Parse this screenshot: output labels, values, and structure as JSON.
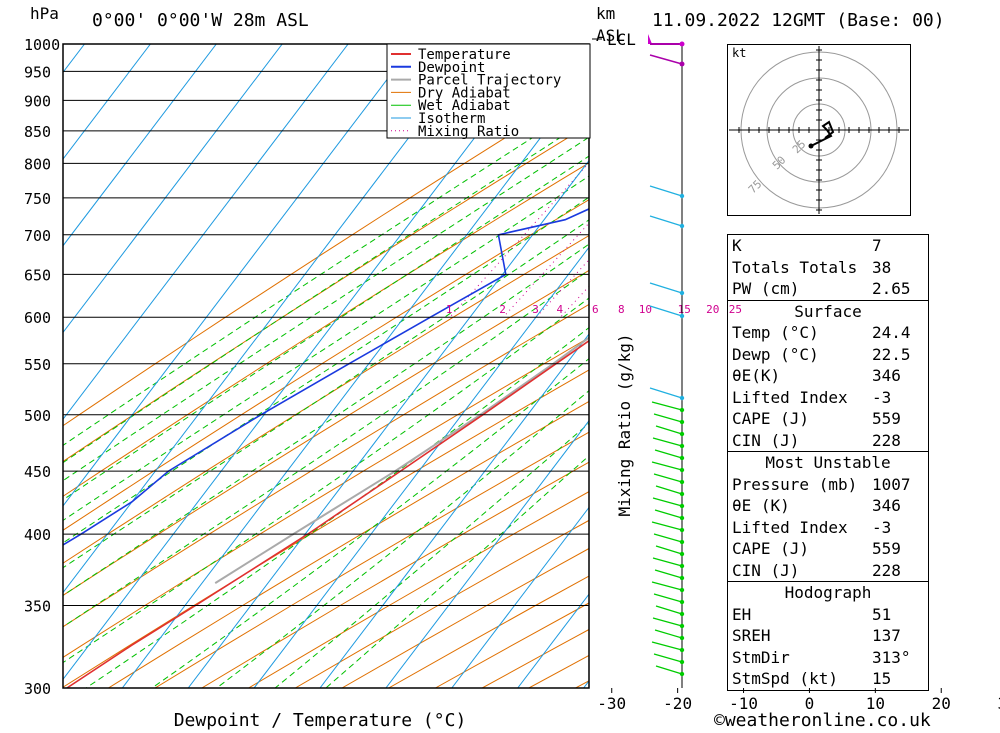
{
  "header": {
    "pressure_unit": "hPa",
    "location": "0°00' 0°00'W 28m ASL",
    "km_unit": "km",
    "asl_label": "ASL",
    "datetime": "11.09.2022 12GMT (Base: 00)"
  },
  "colors": {
    "temperature": "#e03030",
    "dewpoint": "#1a3adf",
    "parcel": "#aaaaaa",
    "dry_adiabat": "#e07000",
    "wet_adiabat": "#00c000",
    "isotherm": "#1e9ae0",
    "mixing_ratio": "#d0008f",
    "wind_barb": "#00cc00"
  },
  "legend": [
    "Temperature",
    "Dewpoint",
    "Parcel Trajectory",
    "Dry Adiabat",
    "Wet Adiabat",
    "Isotherm",
    "Mixing Ratio"
  ],
  "chart_data": {
    "type": "skew-t log-p",
    "xlabel": "Dewpoint / Temperature (°C)",
    "ylabel": "hPa",
    "secondary_label": "Mixing Ratio (g/kg)",
    "x_ticks": [
      "-30",
      "-20",
      "-10",
      "0",
      "10",
      "20",
      "30",
      "40"
    ],
    "y_ticks": [
      "300",
      "350",
      "400",
      "450",
      "500",
      "550",
      "600",
      "650",
      "700",
      "750",
      "800",
      "850",
      "900",
      "950",
      "1000"
    ],
    "mixing_ratio_labels": [
      "1",
      "2",
      "3",
      "4",
      "6",
      "8",
      "10",
      "15",
      "20",
      "25"
    ],
    "lcl_label": "LCL",
    "lcl_pressure": 987,
    "temperature": [
      {
        "p": 1000,
        "t": 24.4
      },
      {
        "p": 990,
        "t": 24.5
      },
      {
        "p": 975,
        "t": 23.8
      },
      {
        "p": 950,
        "t": 22.0
      },
      {
        "p": 925,
        "t": 23.8
      },
      {
        "p": 900,
        "t": 24.8
      },
      {
        "p": 850,
        "t": 21.2
      },
      {
        "p": 800,
        "t": 18.0
      },
      {
        "p": 750,
        "t": 14.4
      },
      {
        "p": 700,
        "t": 10.8
      },
      {
        "p": 650,
        "t": 7.4
      },
      {
        "p": 600,
        "t": 3.2
      },
      {
        "p": 550,
        "t": -1.6
      },
      {
        "p": 500,
        "t": -6.8
      },
      {
        "p": 450,
        "t": -12.8
      },
      {
        "p": 400,
        "t": -19.6
      },
      {
        "p": 350,
        "t": -28.4
      },
      {
        "p": 325,
        "t": -33.5
      },
      {
        "p": 300,
        "t": -38.4
      }
    ],
    "dewpoint": [
      {
        "p": 1000,
        "t": 22.5
      },
      {
        "p": 990,
        "t": 22.4
      },
      {
        "p": 950,
        "t": 19.8
      },
      {
        "p": 925,
        "t": 18.6
      },
      {
        "p": 900,
        "t": -3.8
      },
      {
        "p": 850,
        "t": -6.0
      },
      {
        "p": 800,
        "t": -5.0
      },
      {
        "p": 750,
        "t": -12.0
      },
      {
        "p": 720,
        "t": -16.8
      },
      {
        "p": 700,
        "t": -25.2
      },
      {
        "p": 650,
        "t": -19.5
      },
      {
        "p": 600,
        "t": -26.0
      },
      {
        "p": 550,
        "t": -33.0
      },
      {
        "p": 500,
        "t": -40.5
      },
      {
        "p": 450,
        "t": -48.0
      },
      {
        "p": 425,
        "t": -50.0
      },
      {
        "p": 400,
        "t": -54.0
      },
      {
        "p": 345,
        "t": -65.0
      }
    ],
    "parcel": [
      {
        "p": 1000,
        "t": 24.4
      },
      {
        "p": 987,
        "t": 22.2
      },
      {
        "p": 950,
        "t": 20.8
      },
      {
        "p": 900,
        "t": 18.9
      },
      {
        "p": 850,
        "t": 16.8
      },
      {
        "p": 800,
        "t": 14.5
      },
      {
        "p": 750,
        "t": 12.0
      },
      {
        "p": 700,
        "t": 9.2
      },
      {
        "p": 650,
        "t": 6.0
      },
      {
        "p": 600,
        "t": 2.3
      },
      {
        "p": 550,
        "t": -2.0
      },
      {
        "p": 500,
        "t": -7.2
      },
      {
        "p": 450,
        "t": -13.6
      },
      {
        "p": 400,
        "t": -21.8
      },
      {
        "p": 365,
        "t": -28.0
      }
    ]
  },
  "stats": {
    "general": [
      {
        "k": "K",
        "v": "7"
      },
      {
        "k": "Totals Totals",
        "v": "38"
      },
      {
        "k": "PW (cm)",
        "v": "2.65"
      }
    ],
    "surface": {
      "title": "Surface",
      "rows": [
        {
          "k": "Temp (°C)",
          "v": "24.4"
        },
        {
          "k": "Dewp (°C)",
          "v": "22.5"
        },
        {
          "k": "θE(K)",
          "v": "346"
        },
        {
          "k": "Lifted Index",
          "v": "-3"
        },
        {
          "k": "CAPE (J)",
          "v": "559"
        },
        {
          "k": "CIN (J)",
          "v": "228"
        }
      ]
    },
    "most_unstable": {
      "title": "Most Unstable",
      "rows": [
        {
          "k": "Pressure (mb)",
          "v": "1007"
        },
        {
          "k": "θE (K)",
          "v": "346"
        },
        {
          "k": "Lifted Index",
          "v": "-3"
        },
        {
          "k": "CAPE (J)",
          "v": "559"
        },
        {
          "k": "CIN (J)",
          "v": "228"
        }
      ]
    },
    "hodograph": {
      "title": "Hodograph",
      "rows": [
        {
          "k": "EH",
          "v": "51"
        },
        {
          "k": "SREH",
          "v": "137"
        },
        {
          "k": "StmDir",
          "v": "313°"
        },
        {
          "k": "StmSpd (kt)",
          "v": "15"
        }
      ]
    }
  },
  "hodograph_plot": {
    "unit": "kt",
    "ring_labels": [
      "25",
      "50",
      "75"
    ]
  },
  "footer": {
    "copyright": "©weatheronline.co.uk"
  }
}
